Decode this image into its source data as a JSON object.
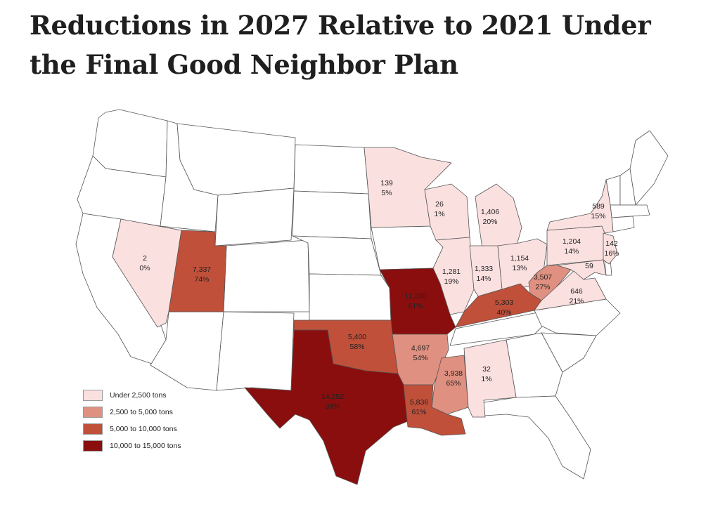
{
  "title": "Reductions in 2027 Relative to 2021 Under the Final Good Neighbor Plan",
  "colors": {
    "under_2500": "#fbe0e0",
    "2500_5000": "#e09080",
    "5000_10000": "#c0503a",
    "10000_15000": "#8b0e0e",
    "unshaded": "#ffffff",
    "border": "#555555"
  },
  "legend": [
    {
      "label": "Under 2,500 tons",
      "color_key": "under_2500"
    },
    {
      "label": "2,500 to 5,000 tons",
      "color_key": "2500_5000"
    },
    {
      "label": "5,000 to 10,000 tons",
      "color_key": "5000_10000"
    },
    {
      "label": "10,000 to 15,000 tons",
      "color_key": "10000_15000"
    }
  ],
  "states": [
    {
      "state": "Nevada",
      "tons": "2",
      "pct": "0%",
      "color_key": "under_2500"
    },
    {
      "state": "Utah",
      "tons": "7,337",
      "pct": "74%",
      "color_key": "5000_10000"
    },
    {
      "state": "Minnesota",
      "tons": "139",
      "pct": "5%",
      "color_key": "under_2500"
    },
    {
      "state": "Wisconsin",
      "tons": "26",
      "pct": "1%",
      "color_key": "under_2500"
    },
    {
      "state": "Michigan",
      "tons": "1,406",
      "pct": "20%",
      "color_key": "under_2500"
    },
    {
      "state": "Illinois",
      "tons": "1,281",
      "pct": "19%",
      "color_key": "under_2500"
    },
    {
      "state": "Indiana",
      "tons": "1,333",
      "pct": "14%",
      "color_key": "under_2500"
    },
    {
      "state": "Ohio",
      "tons": "1,154",
      "pct": "13%",
      "color_key": "under_2500"
    },
    {
      "state": "Pennsylvania",
      "tons": "1,204",
      "pct": "14%",
      "color_key": "under_2500"
    },
    {
      "state": "New York",
      "tons": "589",
      "pct": "15%",
      "color_key": "under_2500"
    },
    {
      "state": "New Jersey",
      "tons": "142",
      "pct": "16%",
      "color_key": "under_2500"
    },
    {
      "state": "Maryland",
      "tons": "59",
      "pct": "",
      "color_key": "under_2500"
    },
    {
      "state": "Virginia",
      "tons": "646",
      "pct": "21%",
      "color_key": "under_2500"
    },
    {
      "state": "West Virginia",
      "tons": "3,507",
      "pct": "27%",
      "color_key": "2500_5000"
    },
    {
      "state": "Kentucky",
      "tons": "5,303",
      "pct": "40%",
      "color_key": "5000_10000"
    },
    {
      "state": "Missouri",
      "tons": "11,230",
      "pct": "61%",
      "color_key": "10000_15000"
    },
    {
      "state": "Oklahoma",
      "tons": "5,400",
      "pct": "58%",
      "color_key": "5000_10000"
    },
    {
      "state": "Arkansas",
      "tons": "4,697",
      "pct": "54%",
      "color_key": "2500_5000"
    },
    {
      "state": "Mississippi",
      "tons": "3,938",
      "pct": "65%",
      "color_key": "2500_5000"
    },
    {
      "state": "Alabama",
      "tons": "32",
      "pct": "1%",
      "color_key": "under_2500"
    },
    {
      "state": "Texas",
      "tons": "14,252",
      "pct": "38%",
      "color_key": "10000_15000"
    },
    {
      "state": "Louisiana",
      "tons": "5,836",
      "pct": "61%",
      "color_key": "5000_10000"
    }
  ]
}
